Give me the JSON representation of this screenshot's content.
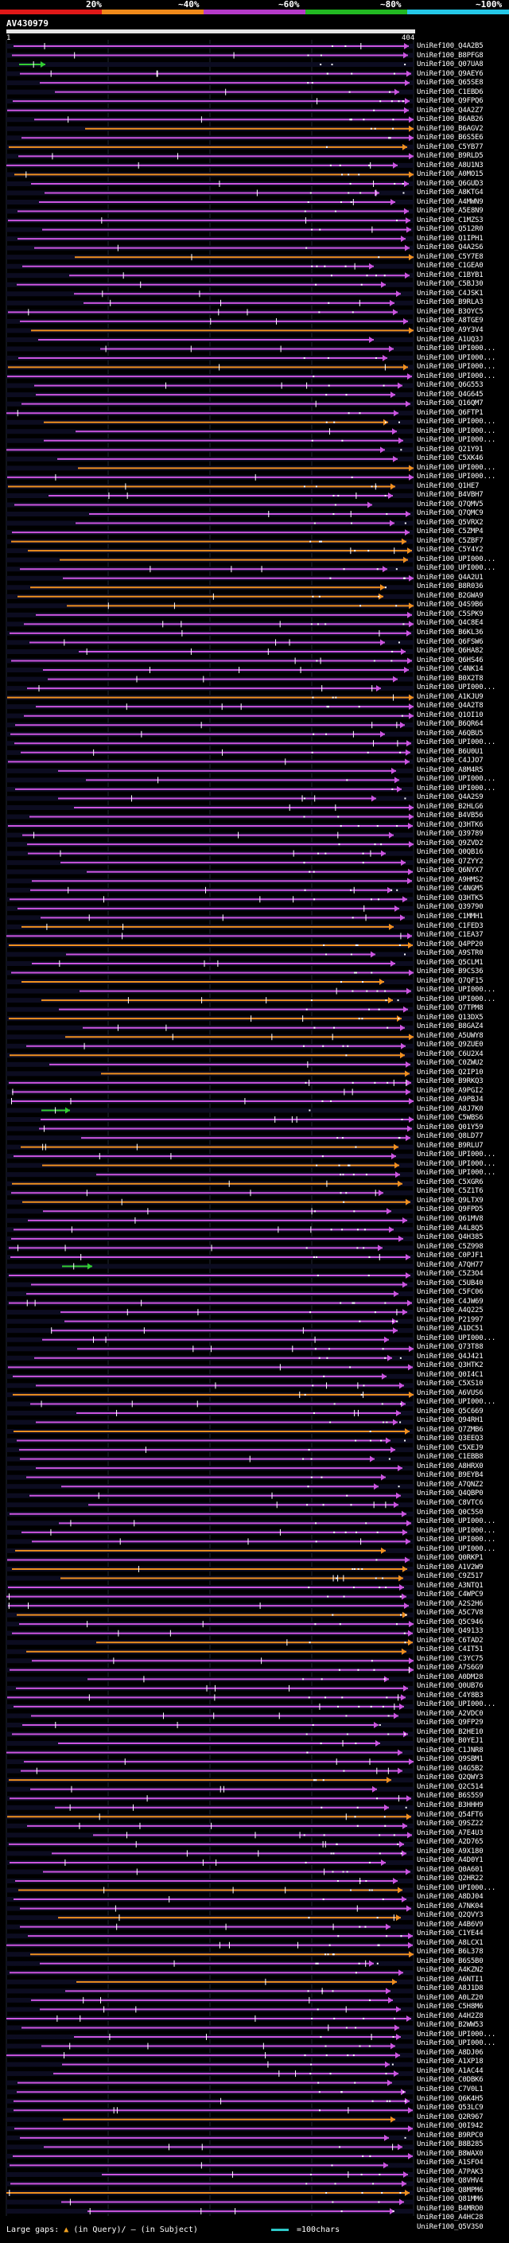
{
  "scale": {
    "labels": [
      "20%",
      "~40%",
      "~60%",
      "~80%",
      "~100%"
    ],
    "colors": [
      "#ff1a1a",
      "#ff8c1a",
      "#b03ad6",
      "#22c422",
      "#29c4e8"
    ]
  },
  "query": {
    "id": "AV430979",
    "start": "1",
    "end": "404"
  },
  "hits": [
    "UniRef100_Q4A2B5",
    "UniRef100_B8PFG8",
    "UniRef100_Q07UA8",
    "UniRef100_Q9AEY6",
    "UniRef100_Q65SE8",
    "UniRef100_C1EBD6",
    "UniRef100_Q9FPQ6",
    "UniRef100_Q4A2Z7",
    "UniRef100_B6AB26",
    "UniRef100_B6AGV2",
    "UniRef100_B6S5E6",
    "UniRef100_C5YB77",
    "UniRef100_B9RLD5",
    "UniRef100_A8U1N3",
    "UniRef100_A0MO15",
    "UniRef100_Q6GUD3",
    "UniRef100_A8KTG4",
    "UniRef100_A4MWN9",
    "UniRef100_A5E8N9",
    "UniRef100_C1MZS3",
    "UniRef100_Q512R0",
    "UniRef100_Q1IPH1",
    "UniRef100_Q4A2S6",
    "UniRef100_C5Y7E8",
    "UniRef100_C1GEA0",
    "UniRef100_C1BYB1",
    "UniRef100_C5BJ30",
    "UniRef100_C4JSK1",
    "UniRef100_B9RLA3",
    "UniRef100_B3OYC5",
    "UniRef100_A8TGE9",
    "UniRef100_A9Y3V4",
    "UniRef100_A1UQ3J",
    "UniRef100_UPI000...",
    "UniRef100_UPI000...",
    "UniRef100_UPI000...",
    "UniRef100_UPI000...",
    "UniRef100_Q6G553",
    "UniRef100_Q4G645",
    "UniRef100_Q16QM7",
    "UniRef100_Q6FTP1",
    "UniRef100_UPI000...",
    "UniRef100_UPI000...",
    "UniRef100_UPI000...",
    "UniRef100_Q21Y91",
    "UniRef100_C5XK46",
    "UniRef100_UPI000...",
    "UniRef100_UPI000...",
    "UniRef100_Q1HE7",
    "UniRef100_B4VBH7",
    "UniRef100_Q7QMV5",
    "UniRef100_Q7QMC9",
    "UniRef100_Q5VRX2",
    "UniRef100_C5ZMP4",
    "UniRef100_C5ZBF7",
    "UniRef100_C5Y4Y2",
    "UniRef100_UPI000...",
    "UniRef100_UPI000...",
    "UniRef100_Q4A2U1",
    "UniRef100_B8R036",
    "UniRef100_B2GWA9",
    "UniRef100_Q4S9B6",
    "UniRef100_C5SPK9",
    "UniRef100_Q4C8E4",
    "UniRef100_B6KL36",
    "UniRef100_Q6FSW6",
    "UniRef100_Q6HA82",
    "UniRef100_Q6HS46",
    "UniRef100_C4NK14",
    "UniRef100_B0X2T8",
    "UniRef100_UPI000...",
    "UniRef100_A1KJU9",
    "UniRef100_Q4A2T8",
    "UniRef100_Q1OI10",
    "UniRef100_B6QR64",
    "UniRef100_A6QBU5",
    "UniRef100_UPI000...",
    "UniRef100_B6U0U1",
    "UniRef100_C4JJO7",
    "UniRef100_A8M4R5",
    "UniRef100_UPI000...",
    "UniRef100_UPI000...",
    "UniRef100_Q4A2S9",
    "UniRef100_B2HLG6",
    "UniRef100_B4VB56",
    "UniRef100_Q3HTK6",
    "UniRef100_Q39789",
    "UniRef100_Q9ZVD2",
    "UniRef100_Q0QB16",
    "UniRef100_Q7ZYY2",
    "UniRef100_Q6NYX7",
    "UniRef100_A9HMS2",
    "UniRef100_C4NGM5",
    "UniRef100_Q3HTK5",
    "UniRef100_Q39790",
    "UniRef100_C1MMH1",
    "UniRef100_C1FED3",
    "UniRef100_C1EA37",
    "UniRef100_Q4PP20",
    "UniRef100_A9STR0",
    "UniRef100_Q5CLM1",
    "UniRef100_B9CS36",
    "UniRef100_Q7QF15",
    "UniRef100_UPI000...",
    "UniRef100_UPI000...",
    "UniRef100_Q7TPM8",
    "UniRef100_Q13DX5",
    "UniRef100_B8GAZ4",
    "UniRef100_A5UWY8",
    "UniRef100_Q9ZUE0",
    "UniRef100_C6U2X4",
    "UniRef100_C0ZWU2",
    "UniRef100_Q2IP10",
    "UniRef100_B9RKQ3",
    "UniRef100_A9PGI2",
    "UniRef100_A9PBJ4",
    "UniRef100_A8J7K0",
    "UniRef100_C5WBS6",
    "UniRef100_Q01Y59",
    "UniRef100_Q8LD77",
    "UniRef100_B9RLU7",
    "UniRef100_UPI000...",
    "UniRef100_UPI000...",
    "UniRef100_UPI000...",
    "UniRef100_C5XGR6",
    "UniRef100_C5Z1T6",
    "UniRef100_Q9LTX9",
    "UniRef100_Q9FPD5",
    "UniRef100_Q61MV8",
    "UniRef100_A4L8Q5",
    "UniRef100_Q4H385",
    "UniRef100_C5Z998",
    "UniRef100_C0PJF1",
    "UniRef100_A7QH77",
    "UniRef100_C5Z3O4",
    "UniRef100_C5UB40",
    "UniRef100_C5FC06",
    "UniRef100_C4JW69",
    "UniRef100_A4Q225",
    "UniRef100_P21997",
    "UniRef100_A1DC51",
    "UniRef100_UPI000...",
    "UniRef100_Q73T88",
    "UniRef100_Q4J421",
    "UniRef100_Q3HTK2",
    "UniRef100_Q0I4C1",
    "UniRef100_C5XS10",
    "UniRef100_A6VUS6",
    "UniRef100_UPI000...",
    "UniRef100_Q5C669",
    "UniRef100_Q94RH1",
    "UniRef100_Q7ZMB6",
    "UniRef100_Q3EEQ3",
    "UniRef100_C5XEJ9",
    "UniRef100_C1EBB8",
    "UniRef100_A8HRX0",
    "UniRef100_B9EYB4",
    "UniRef100_A7QNZ2",
    "UniRef100_Q4QBP0",
    "UniRef100_C8VTC6",
    "UniRef100_Q0C5S0",
    "UniRef100_UPI000...",
    "UniRef100_UPI000...",
    "UniRef100_UPI000...",
    "UniRef100_UPI000...",
    "UniRef100_Q0RKP1",
    "UniRef100_A1V2W9",
    "UniRef100_C9Z517",
    "UniRef100_A3NTQ1",
    "UniRef100_C4WPC9",
    "UniRef100_A2S2H6",
    "UniRef100_A5C7V8",
    "UniRef100_Q5C946",
    "UniRef100_Q49133",
    "UniRef100_C6TAD2",
    "UniRef100_C4IT51",
    "UniRef100_C3YC75",
    "UniRef100_A7S6G9",
    "UniRef100_A0DM28",
    "UniRef100_Q0UB76",
    "UniRef100_C4Y8B3",
    "UniRef100_UPI000...",
    "UniRef100_A2VDC0",
    "UniRef100_Q9FP29",
    "UniRef100_B2HE10",
    "UniRef100_B0YEJ1",
    "UniRef100_C1JNR8",
    "UniRef100_Q9SBM1",
    "UniRef100_Q4G5B2",
    "UniRef100_Q2QWY3",
    "UniRef100_Q2C514",
    "UniRef100_B6S5S9",
    "UniRef100_B3HHH9",
    "UniRef100_Q54FT6",
    "UniRef100_Q9SZ22",
    "UniRef100_A7E4U3",
    "UniRef100_A2D765",
    "UniRef100_A9X180",
    "UniRef100_A4D0Y1",
    "UniRef100_Q0A601",
    "UniRef100_Q2HR22",
    "UniRef100_UPI000...",
    "UniRef100_A8DJ04",
    "UniRef100_A7NK04",
    "UniRef100_Q2QVY3",
    "UniRef100_A4B6V9",
    "UniRef100_C1YE44",
    "UniRef100_A8LCX1",
    "UniRef100_B6L378",
    "UniRef100_B6S5B0",
    "UniRef100_A4KZN2",
    "UniRef100_A6NTI1",
    "UniRef100_A8J1D8",
    "UniRef100_A0LZ20",
    "UniRef100_C5H8M6",
    "UniRef100_A4H2Z8",
    "UniRef100_B2WW53",
    "UniRef100_UPI000...",
    "UniRef100_UPI000...",
    "UniRef100_A8DJ06",
    "UniRef100_A1XP18",
    "UniRef100_A1AC44",
    "UniRef100_C0DBK6",
    "UniRef100_C7V0L1",
    "UniRef100_Q6K4H5",
    "UniRef100_Q53LC9",
    "UniRef100_Q2R967",
    "UniRef100_Q0I942",
    "UniRef100_B9RPC0",
    "UniRef100_B8B285",
    "UniRef100_B8WAX0",
    "UniRef100_A1SFO4",
    "UniRef100_A7PAK3",
    "UniRef100_Q8VHV4",
    "UniRef100_Q8MPM6",
    "UniRef100_Q81MM6",
    "UniRef100_B4MRO0",
    "UniRef100_A4HC28",
    "UniRef100_Q5V3S0"
  ],
  "legend": {
    "gaps_label": "Large gaps:",
    "gaps_text": "(in Query)/",
    "gaps_text2": "(in Subject)",
    "scale_text": "=100chars"
  }
}
